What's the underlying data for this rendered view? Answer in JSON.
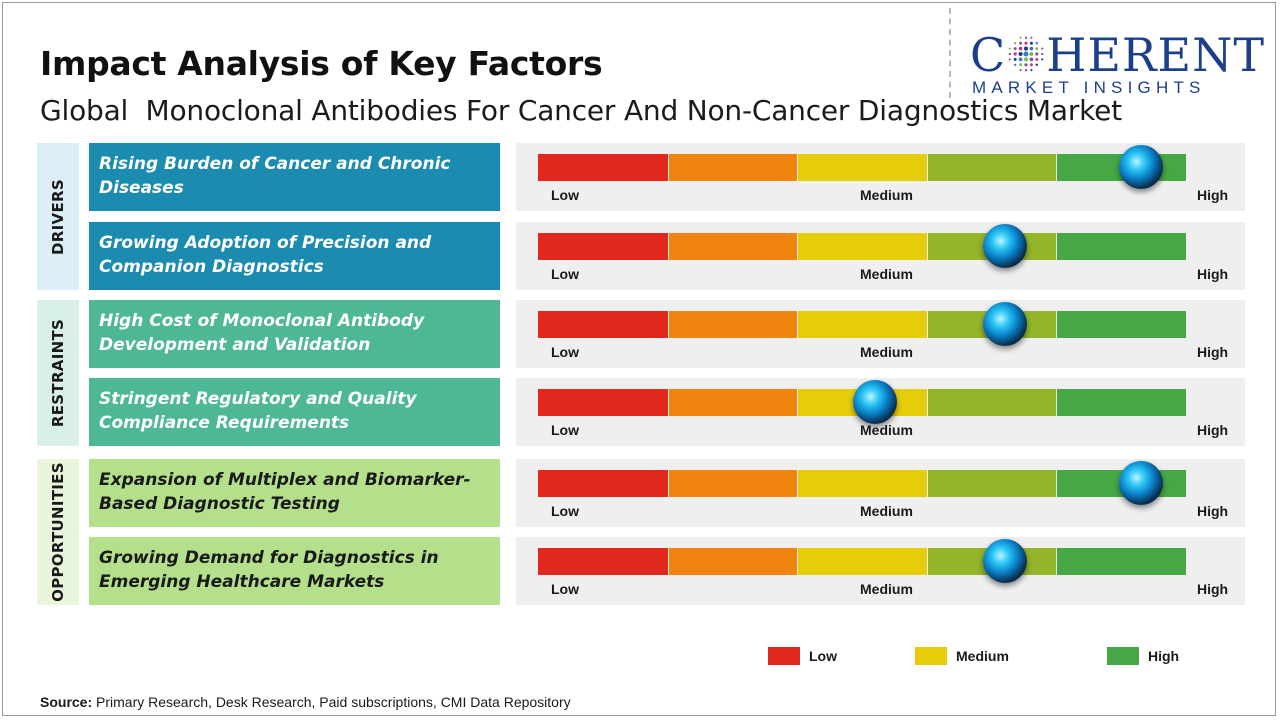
{
  "title": "Impact Analysis of Key Factors",
  "subtitle": "Global  Monoclonal Antibodies For Cancer And Non-Cancer Diagnostics Market",
  "logo": {
    "top_prefix": "C",
    "top_rest": "HERENT",
    "bottom": "MARKET INSIGHTS",
    "color": "#1c3f8c"
  },
  "scale_colors": [
    "#e0281e",
    "#f0840f",
    "#e6cd0a",
    "#94b52a",
    "#46a844"
  ],
  "gauge_labels": {
    "low": "Low",
    "medium": "Medium",
    "high": "High"
  },
  "chart_data": {
    "type": "gauge",
    "scale": [
      "Low",
      "Medium",
      "High"
    ],
    "categories": [
      {
        "name": "DRIVERS",
        "bg": "#dceef8",
        "box_color": "#1c8bb0",
        "text_color": "#ffffff",
        "factors": [
          {
            "label": "Rising Burden of Cancer and Chronic Diseases",
            "impact": 0.93
          },
          {
            "label": "Growing Adoption of Precision and Companion Diagnostics",
            "impact": 0.72
          }
        ]
      },
      {
        "name": "RESTRAINTS",
        "bg": "#d8f0e8",
        "box_color": "#4eb894",
        "text_color": "#ffffff",
        "factors": [
          {
            "label": "High Cost of Monoclonal Antibody Development and Validation",
            "impact": 0.72
          },
          {
            "label": "Stringent Regulatory and Quality Compliance Requirements",
            "impact": 0.52
          }
        ]
      },
      {
        "name": "OPPORTUNITIES",
        "bg": "#eaf6dc",
        "box_color": "#b4e08c",
        "text_color": "#1a1a1a",
        "factors": [
          {
            "label": "Expansion of Multiplex and Biomarker-Based Diagnostic Testing",
            "impact": 0.93
          },
          {
            "label": "Growing Demand for Diagnostics in Emerging Healthcare Markets",
            "impact": 0.72
          }
        ]
      }
    ],
    "legend": [
      {
        "label": "Low",
        "color": "#e0281e"
      },
      {
        "label": "Medium",
        "color": "#e6cd0a"
      },
      {
        "label": "High",
        "color": "#46a844"
      }
    ]
  },
  "source": {
    "prefix": "Source:",
    "text": " Primary Research, Desk Research, Paid subscriptions, CMI Data Repository"
  }
}
